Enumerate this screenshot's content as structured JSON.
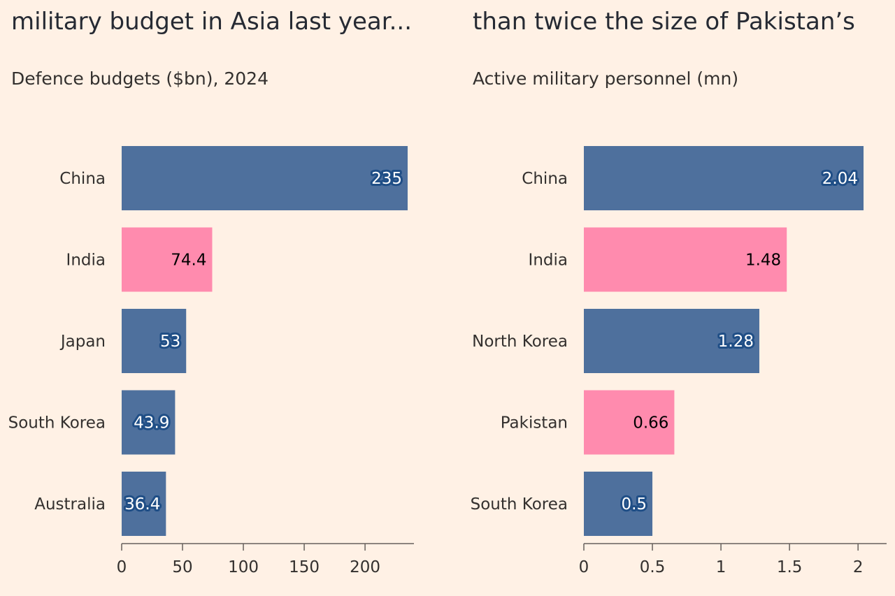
{
  "colors": {
    "background": "#fff1e5",
    "bar_default": "#4e709d",
    "bar_highlight": "#ff8bae",
    "axis": "#66605c",
    "label_dark_text": "#000000",
    "label_dark_halo": "#ff8bae",
    "label_light_text": "#ffffff",
    "label_light_halo": "#1f4e86"
  },
  "chart_data": [
    {
      "type": "bar",
      "orientation": "horizontal",
      "title": "military budget in Asia last year...",
      "subtitle": "Defence budgets ($bn), 2024",
      "categories": [
        "China",
        "India",
        "Japan",
        "South Korea",
        "Australia"
      ],
      "values": [
        235,
        74.4,
        53,
        43.9,
        36.4
      ],
      "value_labels": [
        "235",
        "74.4",
        "53",
        "43.9",
        "36.4"
      ],
      "highlight": [
        false,
        true,
        false,
        false,
        false
      ],
      "xlim": [
        0,
        240
      ],
      "xticks": [
        0,
        50,
        100,
        150,
        200
      ],
      "xtick_labels": [
        "0",
        "50",
        "100",
        "150",
        "200"
      ],
      "grid": false,
      "legend": "none"
    },
    {
      "type": "bar",
      "orientation": "horizontal",
      "title": "than twice the size of Pakistan’s",
      "subtitle": "Active military personnel (mn)",
      "categories": [
        "China",
        "India",
        "North Korea",
        "Pakistan",
        "South Korea"
      ],
      "values": [
        2.04,
        1.48,
        1.28,
        0.66,
        0.5
      ],
      "value_labels": [
        "2.04",
        "1.48",
        "1.28",
        "0.66",
        "0.5"
      ],
      "highlight": [
        false,
        true,
        false,
        true,
        false
      ],
      "xlim": [
        0,
        2.2
      ],
      "xticks": [
        0,
        0.5,
        1,
        1.5,
        2
      ],
      "xtick_labels": [
        "0",
        "0.5",
        "1",
        "1.5",
        "2"
      ],
      "grid": false,
      "legend": "none"
    }
  ]
}
